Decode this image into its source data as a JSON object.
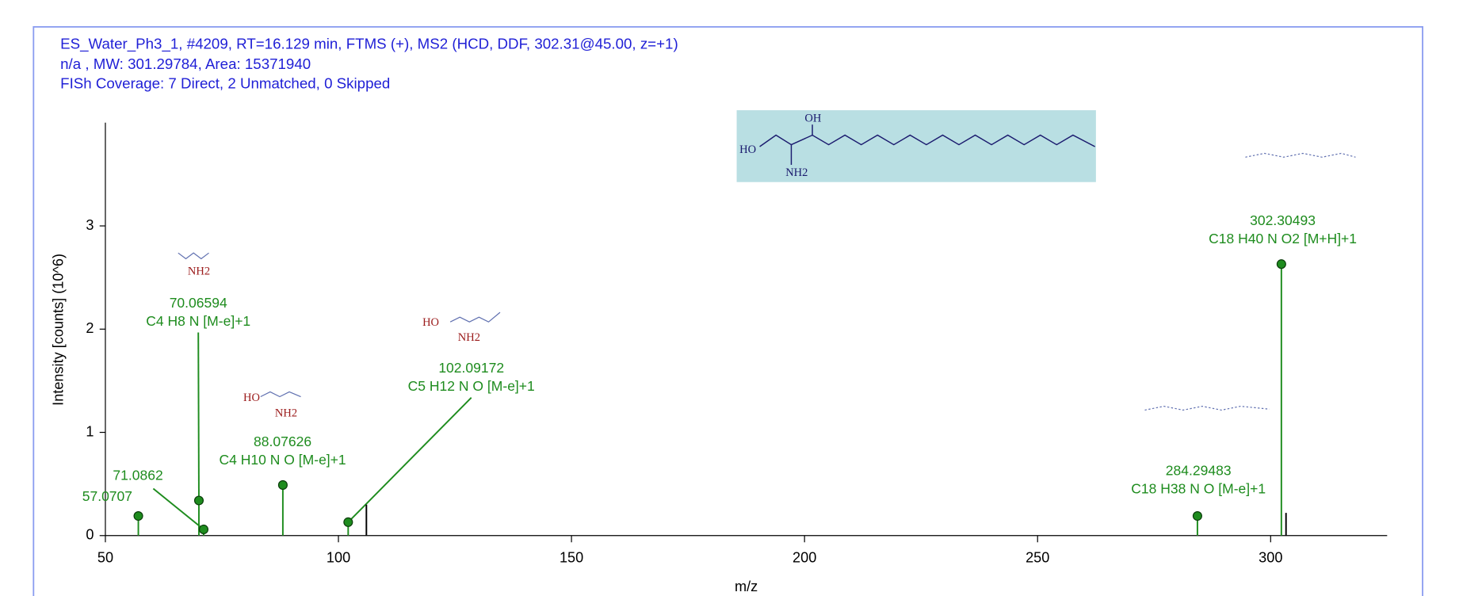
{
  "chart_data": {
    "type": "stem",
    "header": [
      "ES_Water_Ph3_1, #4209, RT=16.129 min, FTMS (+), MS2 (HCD, DDF, 302.31@45.00, z=+1)",
      "n/a , MW: 301.29784, Area: 15371940",
      "FISh Coverage: 7 Direct, 2 Unmatched, 0 Skipped"
    ],
    "x_label": "m/z",
    "y_label": "Intensity [counts] (10^6)",
    "xlim": [
      50,
      325
    ],
    "xticks": [
      50,
      100,
      150,
      200,
      250,
      300
    ],
    "ylim": [
      0,
      4
    ],
    "yticks": [
      0,
      1,
      2,
      3
    ],
    "series": [
      {
        "color": "#1e8c1e",
        "marker": true,
        "x": [
          57.0707,
          70.06594,
          71.0862,
          88.07626,
          102.09172,
          284.29483,
          302.30493
        ],
        "values": [
          0.19,
          0.34,
          0.06,
          0.49,
          0.13,
          0.19,
          2.63
        ],
        "formulas": [
          null,
          "C4 H8 N [M-e]+1",
          null,
          "C4 H10 N O [M-e]+1",
          "C5 H12 N O [M-e]+1",
          "C18 H38 N O [M-e]+1",
          "C18 H40 N O2 [M+H]+1"
        ]
      },
      {
        "color": "#000000",
        "marker": false,
        "x": [
          106,
          303.3
        ],
        "values": [
          0.3,
          0.22
        ]
      }
    ],
    "structure": {
      "labels": [
        "HO",
        "OH",
        "NH2"
      ]
    }
  }
}
